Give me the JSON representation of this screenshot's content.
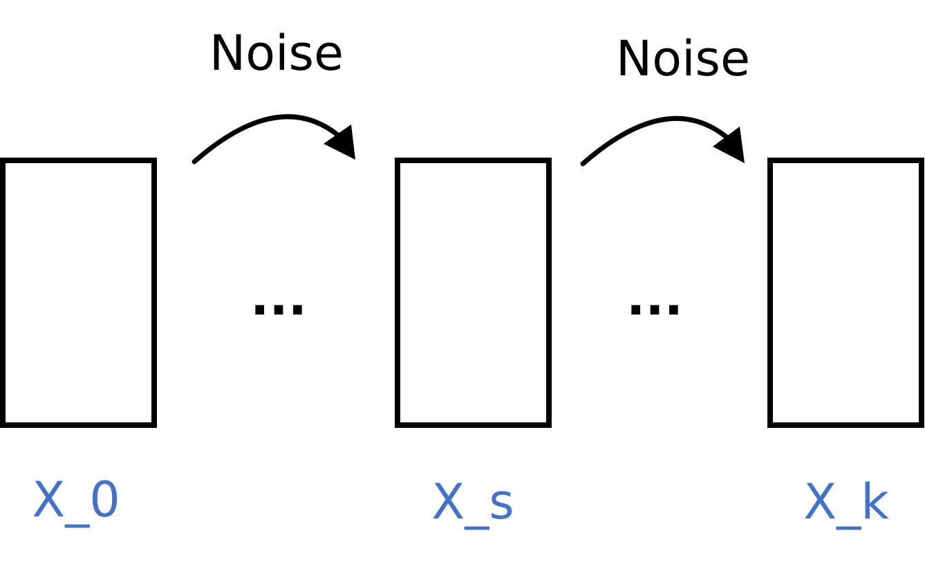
{
  "diagram": {
    "states": [
      {
        "label": "X_0"
      },
      {
        "label": "X_s"
      },
      {
        "label": "X_k"
      }
    ],
    "transitions": [
      {
        "label": "Noise"
      },
      {
        "label": "Noise"
      }
    ],
    "ellipses": [
      {
        "text": "..."
      },
      {
        "text": "..."
      }
    ],
    "colors": {
      "state_label": "#4472C4",
      "box_stroke": "#000000",
      "arrow": "#000000"
    }
  }
}
